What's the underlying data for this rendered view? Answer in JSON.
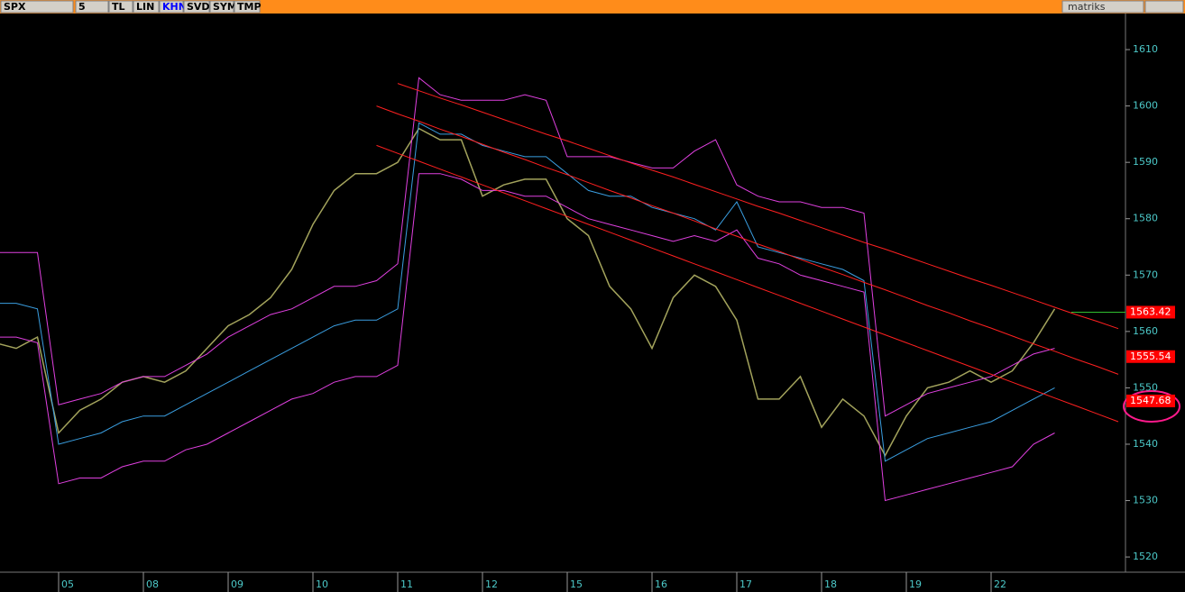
{
  "toolbar": {
    "symbol": "SPX",
    "buttons": [
      "5",
      "TL",
      "LIN",
      "KHN",
      "SVD",
      "SYM",
      "TMP"
    ],
    "brand": "matriks"
  },
  "chart_data": {
    "type": "line",
    "categories": [
      null,
      null,
      null,
      "05",
      null,
      null,
      null,
      "08",
      null,
      null,
      null,
      "09",
      null,
      null,
      null,
      "10",
      null,
      null,
      null,
      "11",
      null,
      null,
      null,
      "12",
      null,
      null,
      null,
      "15",
      null,
      null,
      null,
      "16",
      null,
      null,
      null,
      "17",
      null,
      null,
      null,
      "18",
      null,
      null,
      null,
      "19",
      null,
      null,
      null,
      "22",
      null,
      null,
      null,
      null,
      null,
      null
    ],
    "ylim": [
      1517.3,
      1616.4
    ],
    "yticks": [
      1520,
      1530,
      1540,
      1550,
      1560,
      1570,
      1580,
      1590,
      1600,
      1610
    ],
    "series": [
      {
        "color": "#a3a35c",
        "values": [
          1558,
          1557,
          1559,
          1542,
          1546,
          1548,
          1551,
          1552,
          1551,
          1553,
          1557,
          1561,
          1563,
          1566,
          1571,
          1579,
          1585,
          1588,
          1588,
          1590,
          1596,
          1594,
          1594,
          1584,
          1586,
          1587,
          1587,
          1580,
          1577,
          1568,
          1564,
          1557,
          1566,
          1570,
          1568,
          1562,
          1548,
          1548,
          1552,
          1543,
          1548,
          1545,
          1538,
          1545,
          1550,
          1551,
          1553,
          1551,
          1553,
          1558,
          1564,
          null,
          null,
          null
        ]
      },
      {
        "color": "#e040e0",
        "values": [
          1574,
          1574,
          1574,
          1547,
          1548,
          1549,
          1551,
          1552,
          1552,
          1554,
          1556,
          1559,
          1561,
          1563,
          1564,
          1566,
          1568,
          1568,
          1569,
          1572,
          1605,
          1602,
          1601,
          1601,
          1601,
          1602,
          1601,
          1591,
          1591,
          1591,
          1590,
          1589,
          1589,
          1592,
          1594,
          1586,
          1584,
          1583,
          1583,
          1582,
          1582,
          1581,
          1545,
          1547,
          1549,
          1550,
          1551,
          1552,
          1554,
          1556,
          1557,
          null,
          null,
          null
        ]
      },
      {
        "color": "#3a9ee0",
        "values": [
          1565,
          1565,
          1564,
          1540,
          1541,
          1542,
          1544,
          1545,
          1545,
          1547,
          1549,
          1551,
          1553,
          1555,
          1557,
          1559,
          1561,
          1562,
          1562,
          1564,
          1597,
          1595,
          1595,
          1593,
          1592,
          1591,
          1591,
          1588,
          1585,
          1584,
          1584,
          1582,
          1581,
          1580,
          1578,
          1583,
          1575,
          1574,
          1573,
          1572,
          1571,
          1569,
          1537,
          1539,
          1541,
          1542,
          1543,
          1544,
          1546,
          1548,
          1550,
          null,
          null,
          null
        ]
      },
      {
        "color": "#e040e0",
        "values": [
          1559,
          1559,
          1558,
          1533,
          1534,
          1534,
          1536,
          1537,
          1537,
          1539,
          1540,
          1542,
          1544,
          1546,
          1548,
          1549,
          1551,
          1552,
          1552,
          1554,
          1588,
          1588,
          1587,
          1585,
          1585,
          1584,
          1584,
          1582,
          1580,
          1579,
          1578,
          1577,
          1576,
          1577,
          1576,
          1578,
          1573,
          1572,
          1570,
          1569,
          1568,
          1567,
          1530,
          1531,
          1532,
          1533,
          1534,
          1535,
          1536,
          1540,
          1542,
          null,
          null,
          null
        ]
      },
      {
        "color": "#ff2020",
        "values": [
          null,
          null,
          null,
          null,
          null,
          null,
          null,
          null,
          null,
          null,
          null,
          null,
          null,
          null,
          null,
          null,
          null,
          null,
          null,
          1604,
          1602.7,
          1601.4,
          1600.2,
          1598.9,
          1597.6,
          1596.3,
          1595.0,
          1593.8,
          1592.5,
          1591.2,
          1589.9,
          1588.6,
          1587.4,
          1586.1,
          1584.8,
          1583.5,
          1582.2,
          1581.0,
          1579.7,
          1578.4,
          1577.1,
          1575.8,
          1574.6,
          1573.3,
          1572.0,
          1570.7,
          1569.4,
          1568.2,
          1566.9,
          1565.6,
          1564.3,
          1563.0,
          1561.8,
          1560.5
        ]
      },
      {
        "color": "#ff2020",
        "values": [
          null,
          null,
          null,
          null,
          null,
          null,
          null,
          null,
          null,
          null,
          null,
          null,
          null,
          null,
          null,
          null,
          null,
          null,
          1600,
          1598.6,
          1597.3,
          1595.9,
          1594.6,
          1593.2,
          1591.8,
          1590.5,
          1589.1,
          1587.8,
          1586.4,
          1585.0,
          1583.7,
          1582.3,
          1581.0,
          1579.6,
          1578.2,
          1576.9,
          1575.5,
          1574.2,
          1572.8,
          1571.4,
          1570.1,
          1568.7,
          1567.4,
          1566.0,
          1564.6,
          1563.3,
          1561.9,
          1560.6,
          1559.2,
          1557.8,
          1556.5,
          1555.1,
          1553.8,
          1552.4
        ]
      },
      {
        "color": "#ff2020",
        "values": [
          null,
          null,
          null,
          null,
          null,
          null,
          null,
          null,
          null,
          null,
          null,
          null,
          null,
          null,
          null,
          null,
          null,
          null,
          1593,
          1591.6,
          1590.2,
          1588.8,
          1587.4,
          1586,
          1584.6,
          1583.2,
          1581.8,
          1580.4,
          1579,
          1577.6,
          1576.2,
          1574.8,
          1573.4,
          1572,
          1570.6,
          1569.2,
          1567.8,
          1566.4,
          1565,
          1563.6,
          1562.2,
          1560.8,
          1559.4,
          1558,
          1556.6,
          1555.2,
          1553.8,
          1552.4,
          1551,
          1549.6,
          1548.2,
          1546.8,
          1545.4,
          1544
        ]
      }
    ],
    "price_labels": [
      1563.42,
      1555.54,
      1547.68
    ],
    "price_label_color": "#ff0000"
  }
}
